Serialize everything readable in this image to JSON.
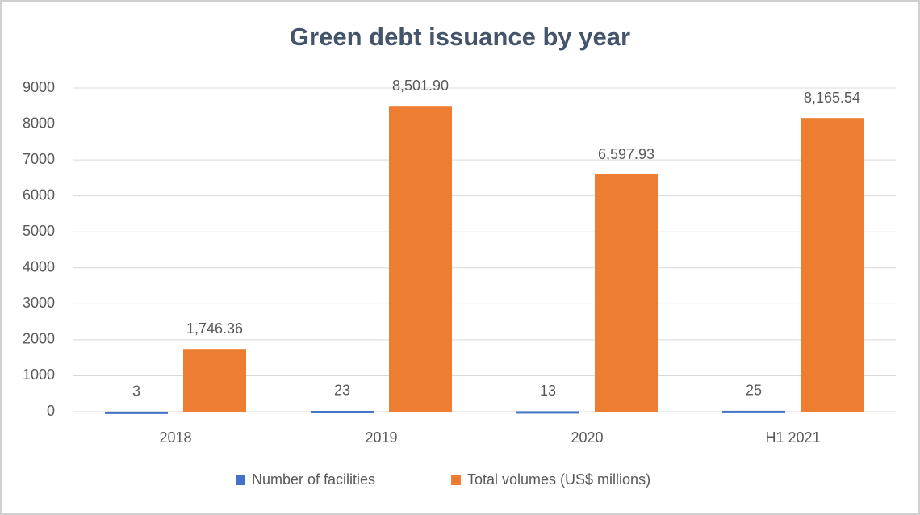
{
  "chart_data": {
    "type": "bar",
    "title": "Green debt issuance by year",
    "categories": [
      "2018",
      "2019",
      "2020",
      "H1 2021"
    ],
    "series": [
      {
        "name": "Number of facilities",
        "color": "#4472c4",
        "values": [
          3,
          23,
          13,
          25
        ]
      },
      {
        "name": "Total volumes (US$ millions)",
        "color": "#ed7d31",
        "values": [
          1746.36,
          8501.9,
          6597.93,
          8165.54
        ],
        "value_labels": [
          "1,746.36",
          "8,501.90",
          "6,597.93",
          "8,165.54"
        ]
      }
    ],
    "ylim": [
      0,
      9000
    ],
    "yticks": [
      0,
      1000,
      2000,
      3000,
      4000,
      5000,
      6000,
      7000,
      8000,
      9000
    ],
    "grid": true,
    "legend": "bottom"
  }
}
